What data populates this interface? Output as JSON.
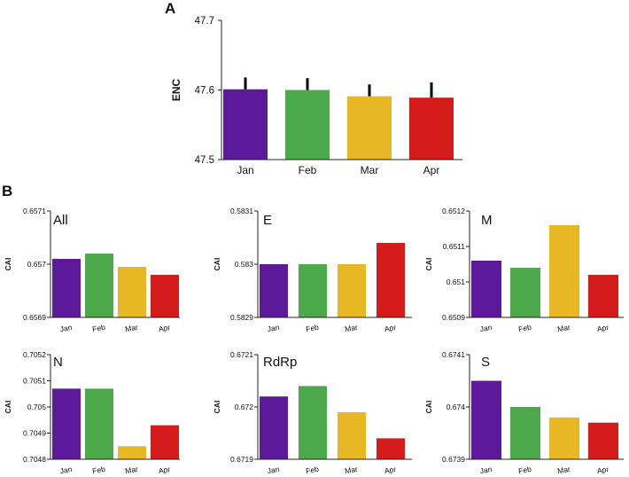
{
  "colors": {
    "Jan": "#5c1a9a",
    "Feb": "#4caa4c",
    "Mar": "#e8b824",
    "Apr": "#d41c1c",
    "axis": "#222222",
    "error_bar": "#000000"
  },
  "panel_labels": {
    "a": "A",
    "b": "B"
  },
  "chart_data": [
    {
      "id": "enc",
      "panel": "A",
      "type": "bar",
      "title": "",
      "xlabel": "",
      "ylabel": "ENC",
      "categories": [
        "Jan",
        "Feb",
        "Mar",
        "Apr"
      ],
      "values": [
        47.601,
        47.6,
        47.591,
        47.589
      ],
      "error_upper": [
        47.618,
        47.617,
        47.608,
        47.611
      ],
      "ylim": [
        47.5,
        47.7
      ],
      "yticks": [
        "47.5",
        "47.6",
        "47.7"
      ],
      "ytick_values": [
        47.5,
        47.6,
        47.7
      ]
    },
    {
      "id": "all",
      "panel": "B",
      "type": "bar",
      "title": "All",
      "ylabel": "CAI",
      "categories": [
        "Jan",
        "Feb",
        "Mar",
        "Apr"
      ],
      "values": [
        0.65701,
        0.65702,
        0.656995,
        0.65698
      ],
      "ylim": [
        0.6569,
        0.6571
      ],
      "yticks": [
        "0.6569",
        "0.657",
        "0.6571"
      ],
      "ytick_values": [
        0.6569,
        0.657,
        0.6571
      ]
    },
    {
      "id": "e",
      "panel": "B",
      "type": "bar",
      "title": "E",
      "ylabel": "CAI",
      "categories": [
        "Jan",
        "Feb",
        "Mar",
        "Apr"
      ],
      "values": [
        0.583,
        0.583,
        0.583,
        0.58304
      ],
      "ylim": [
        0.5829,
        0.5831
      ],
      "yticks": [
        "0.5829",
        "0.583",
        "0.5831"
      ],
      "ytick_values": [
        0.5829,
        0.583,
        0.5831
      ]
    },
    {
      "id": "m",
      "panel": "B",
      "type": "bar",
      "title": "M",
      "ylabel": "CAI",
      "categories": [
        "Jan",
        "Feb",
        "Mar",
        "Apr"
      ],
      "values": [
        0.65106,
        0.65104,
        0.65116,
        0.65102
      ],
      "ylim": [
        0.6509,
        0.6512
      ],
      "yticks": [
        "0.6509",
        "0.651",
        "0.6511",
        "0.6512"
      ],
      "ytick_values": [
        0.6509,
        0.651,
        0.6511,
        0.6512
      ]
    },
    {
      "id": "n",
      "panel": "B",
      "type": "bar",
      "title": "N",
      "ylabel": "CAI",
      "categories": [
        "Jan",
        "Feb",
        "Mar",
        "Apr"
      ],
      "values": [
        0.70507,
        0.70507,
        0.70485,
        0.70493
      ],
      "ylim": [
        0.7048,
        0.7052
      ],
      "yticks": [
        "0.7048",
        "0.7049",
        "0.705",
        "0.7051",
        "0.7052"
      ],
      "ytick_values": [
        0.7048,
        0.7049,
        0.705,
        0.7051,
        0.7052
      ]
    },
    {
      "id": "rdrp",
      "panel": "B",
      "type": "bar",
      "title": "RdRp",
      "ylabel": "CAI",
      "categories": [
        "Jan",
        "Feb",
        "Mar",
        "Apr"
      ],
      "values": [
        0.67202,
        0.67204,
        0.67199,
        0.67194
      ],
      "ylim": [
        0.6719,
        0.6721
      ],
      "yticks": [
        "0.6719",
        "0.672",
        "0.6721"
      ],
      "ytick_values": [
        0.6719,
        0.672,
        0.6721
      ]
    },
    {
      "id": "s",
      "panel": "B",
      "type": "bar",
      "title": "S",
      "ylabel": "CAI",
      "categories": [
        "Jan",
        "Feb",
        "Mar",
        "Apr"
      ],
      "values": [
        0.67405,
        0.674,
        0.67398,
        0.67397
      ],
      "ylim": [
        0.6739,
        0.6741
      ],
      "yticks": [
        "0.6739",
        "0.674",
        "0.6741"
      ],
      "ytick_values": [
        0.6739,
        0.674,
        0.6741
      ]
    }
  ]
}
